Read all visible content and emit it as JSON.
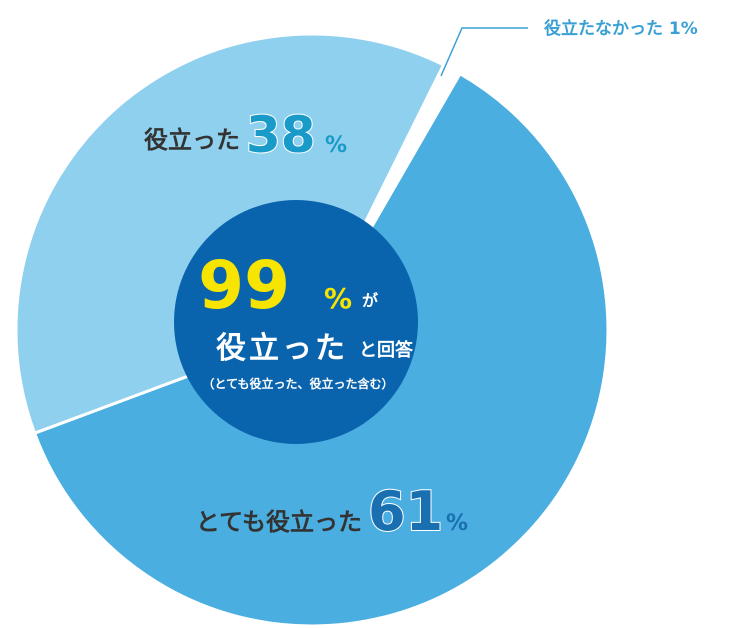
{
  "chart_data": {
    "type": "pie",
    "categories": [
      "とても役立った",
      "役立った",
      "役立たなかった"
    ],
    "values": [
      61,
      38,
      1
    ],
    "value_labels": [
      "61",
      "38",
      "1%"
    ],
    "unit": "%",
    "colors": [
      "#4aaee0",
      "#8fd0ef",
      "#ffffff"
    ],
    "center": {
      "value": 99,
      "suffix": "が",
      "main": "役立った",
      "tail": "と回答",
      "note": "（とても役立った、役立った含む）"
    }
  }
}
